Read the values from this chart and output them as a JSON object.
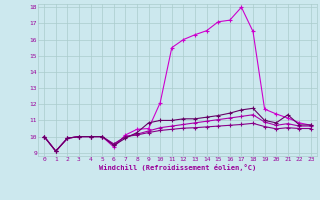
{
  "xlabel": "Windchill (Refroidissement éolien,°C)",
  "bg_color": "#cce8ee",
  "line_color": "#990099",
  "grid_color": "#aacccc",
  "xlim": [
    -0.5,
    23.5
  ],
  "ylim": [
    8.8,
    18.2
  ],
  "yticks": [
    9,
    10,
    11,
    12,
    13,
    14,
    15,
    16,
    17,
    18
  ],
  "xticks": [
    0,
    1,
    2,
    3,
    4,
    5,
    6,
    7,
    8,
    9,
    10,
    11,
    12,
    13,
    14,
    15,
    16,
    17,
    18,
    19,
    20,
    21,
    22,
    23
  ],
  "series": [
    {
      "x": [
        0,
        1,
        2,
        3,
        4,
        5,
        6,
        7,
        8,
        9,
        10,
        11,
        12,
        13,
        14,
        15,
        16,
        17,
        18,
        19,
        20,
        21,
        22,
        23
      ],
      "y": [
        10.0,
        9.1,
        9.9,
        10.0,
        10.0,
        10.0,
        9.35,
        10.1,
        10.45,
        10.5,
        12.1,
        15.5,
        16.0,
        16.3,
        16.55,
        17.1,
        17.2,
        18.0,
        16.5,
        11.7,
        11.4,
        11.15,
        10.85,
        10.7
      ]
    },
    {
      "x": [
        0,
        1,
        2,
        3,
        4,
        5,
        6,
        7,
        8,
        9,
        10,
        11,
        12,
        13,
        14,
        15,
        16,
        17,
        18,
        19,
        20,
        21,
        22,
        23
      ],
      "y": [
        10.0,
        9.1,
        9.9,
        10.0,
        10.0,
        10.0,
        9.5,
        10.0,
        10.15,
        10.35,
        10.55,
        10.65,
        10.75,
        10.85,
        10.95,
        11.05,
        11.15,
        11.25,
        11.35,
        10.9,
        10.7,
        10.8,
        10.65,
        10.65
      ]
    },
    {
      "x": [
        0,
        1,
        2,
        3,
        4,
        5,
        6,
        7,
        8,
        9,
        10,
        11,
        12,
        13,
        14,
        15,
        16,
        17,
        18,
        19,
        20,
        21,
        22,
        23
      ],
      "y": [
        10.0,
        9.1,
        9.9,
        10.0,
        10.0,
        10.0,
        9.55,
        10.0,
        10.1,
        10.25,
        10.38,
        10.45,
        10.52,
        10.55,
        10.6,
        10.65,
        10.7,
        10.75,
        10.82,
        10.62,
        10.48,
        10.55,
        10.5,
        10.5
      ]
    },
    {
      "x": [
        0,
        1,
        2,
        3,
        4,
        5,
        6,
        7,
        8,
        9,
        10,
        11,
        12,
        13,
        14,
        15,
        16,
        17,
        18,
        19,
        20,
        21,
        22,
        23
      ],
      "y": [
        10.0,
        9.1,
        9.9,
        10.0,
        10.0,
        10.0,
        9.45,
        9.9,
        10.25,
        10.85,
        11.0,
        11.0,
        11.1,
        11.1,
        11.2,
        11.3,
        11.45,
        11.65,
        11.75,
        11.0,
        10.85,
        11.35,
        10.72,
        10.72
      ]
    }
  ],
  "line_colors": [
    "#cc00cc",
    "#aa00aa",
    "#880088",
    "#660066"
  ],
  "linewidths": [
    0.8,
    0.8,
    0.8,
    0.8
  ],
  "markersize": 2.5
}
